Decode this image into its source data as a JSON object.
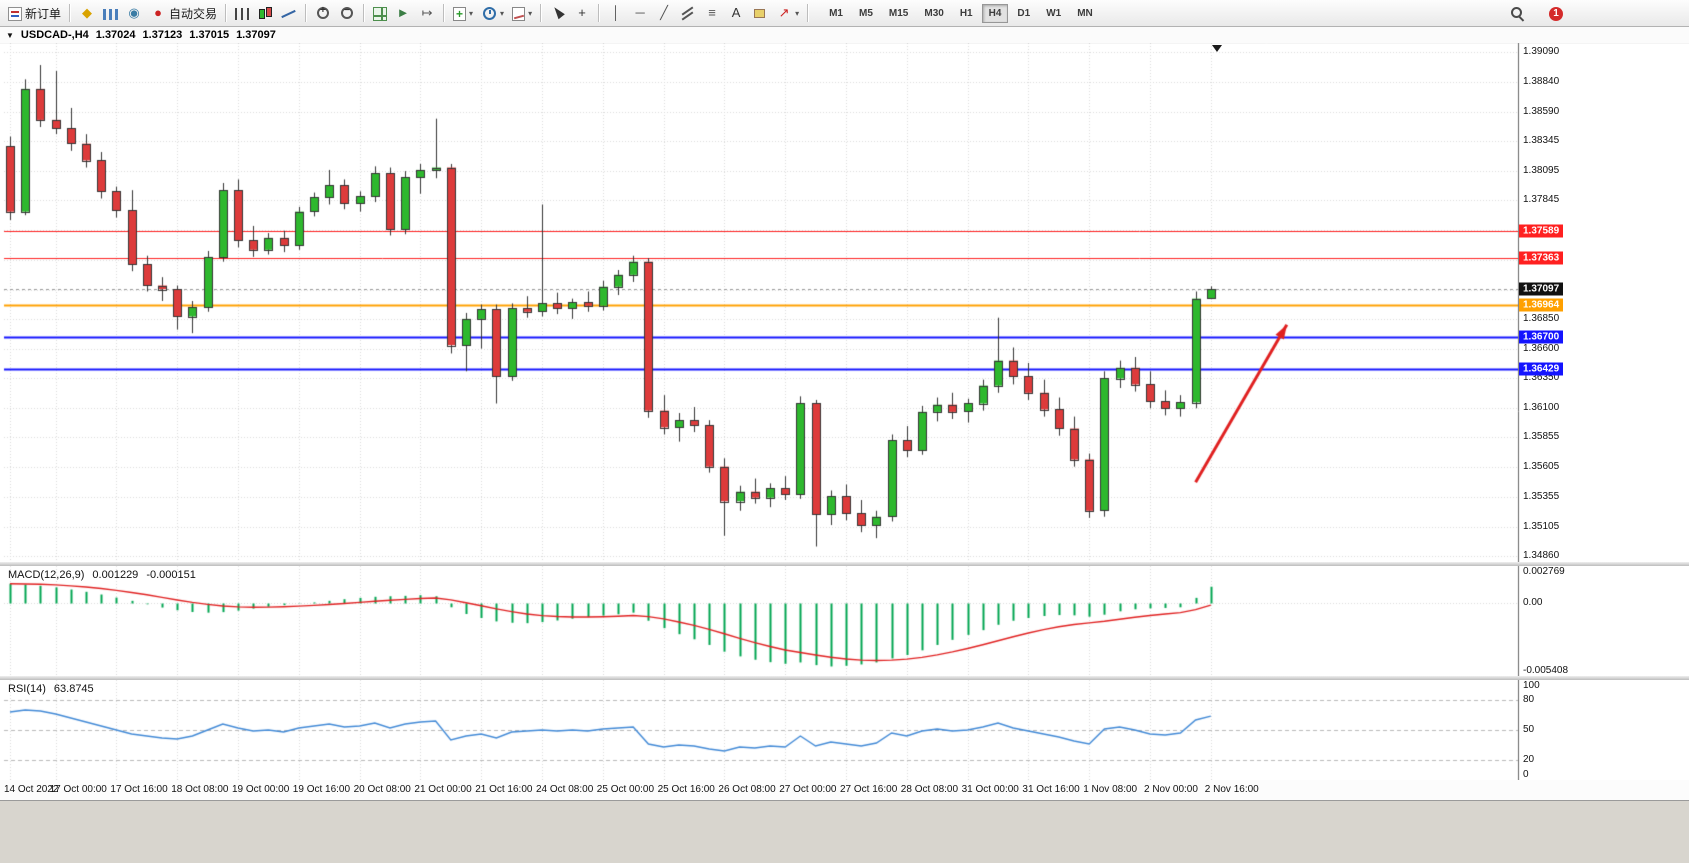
{
  "toolbar": {
    "items": [
      {
        "name": "new-order-button",
        "icon": "new-order-icon",
        "css": "i-neworder",
        "label": "新订单"
      },
      {
        "sep": true
      },
      {
        "name": "metaeditor-button",
        "icon": "metaeditor-icon",
        "glyph": "◆",
        "color": "#D9A300"
      },
      {
        "name": "market-watch-button",
        "icon": "market-watch-icon",
        "css": "i-bars-blue"
      },
      {
        "name": "navigator-button",
        "icon": "navigator-icon",
        "glyph": "◉",
        "color": "#3A7CA5"
      },
      {
        "name": "autotrading-button",
        "icon": "autotrading-icon",
        "glyph": "●",
        "color": "#CC2222",
        "label": "自动交易"
      },
      {
        "sep": true
      },
      {
        "name": "bar-chart-button",
        "icon": "bar-chart-icon",
        "css": "i-ohlc"
      },
      {
        "name": "candlestick-button",
        "icon": "candlestick-icon",
        "css": "i-candles"
      },
      {
        "name": "line-chart-button",
        "icon": "line-chart-icon",
        "css": "i-linechart"
      },
      {
        "sep": true
      },
      {
        "name": "zoom-in-button",
        "icon": "zoom-in-icon",
        "css": "i-zoomin"
      },
      {
        "name": "zoom-out-button",
        "icon": "zoom-out-icon",
        "css": "i-zoomout"
      },
      {
        "sep": true
      },
      {
        "name": "tile-windows-button",
        "icon": "tile-windows-icon",
        "css": "i-tile"
      },
      {
        "name": "auto-scroll-button",
        "icon": "auto-scroll-icon",
        "glyph": "►",
        "color": "#3A7D44"
      },
      {
        "name": "chart-shift-button",
        "icon": "chart-shift-icon",
        "glyph": "↦",
        "color": "#555555"
      },
      {
        "sep": true
      },
      {
        "name": "new-chart-button",
        "icon": "new-chart-icon",
        "css": "i-newchart",
        "dropdown": true
      },
      {
        "name": "periods-button",
        "icon": "periods-icon",
        "css": "i-clock",
        "dropdown": true
      },
      {
        "name": "templates-button",
        "icon": "templates-icon",
        "css": "i-template",
        "dropdown": true
      },
      {
        "sep": true
      },
      {
        "name": "cursor-button",
        "icon": "cursor-icon",
        "css": "i-cursor"
      },
      {
        "name": "crosshair-button",
        "icon": "crosshair-icon",
        "glyph": "+",
        "color": "#333333"
      },
      {
        "sep": true
      },
      {
        "name": "vertical-line-button",
        "icon": "vertical-line-icon",
        "glyph": "│",
        "color": "#555555"
      },
      {
        "name": "horizontal-line-button",
        "icon": "horizontal-line-icon",
        "glyph": "─",
        "color": "#555555"
      },
      {
        "name": "trendline-button",
        "icon": "trendline-icon",
        "glyph": "╱",
        "color": "#555555"
      },
      {
        "name": "channel-button",
        "icon": "equidistant-channel-icon",
        "css": "i-channel"
      },
      {
        "name": "fibonacci-button",
        "icon": "fibonacci-icon",
        "glyph": "≡",
        "color": "#555555"
      },
      {
        "name": "text-button",
        "icon": "text-icon",
        "glyph": "A",
        "color": "#333333"
      },
      {
        "name": "label-button",
        "icon": "label-icon",
        "css": "i-label"
      },
      {
        "name": "arrows-button",
        "icon": "arrow-tool-icon",
        "glyph": "↗",
        "color": "#CC2222",
        "dropdown": true
      },
      {
        "sep": true
      }
    ],
    "timeframes": [
      "M1",
      "M5",
      "M15",
      "M30",
      "H1",
      "H4",
      "D1",
      "W1",
      "MN"
    ],
    "active_timeframe": "H4",
    "right_items": [
      {
        "name": "search-button",
        "icon": "search-icon",
        "css": "i-magnifier"
      },
      {
        "name": "notifications-button",
        "icon": "notification-icon",
        "css": "i-notif",
        "badge": "1"
      }
    ],
    "dropdown_glyph": "▾"
  },
  "chart_header": {
    "menu_icon": "▼",
    "symbol": "USDCAD-,H4",
    "open": "1.37024",
    "high": "1.37123",
    "low": "1.37015",
    "close": "1.37097"
  },
  "panes": {
    "macd": {
      "label": "MACD(12,26,9)",
      "main": "0.001229",
      "signal": "-0.000151"
    },
    "rsi": {
      "label": "RSI(14)",
      "value": "63.8745"
    }
  },
  "chart_data": {
    "type": "candlestick",
    "symbol": "USDCAD",
    "period": "H4",
    "price_range": [
      1.3481,
      1.39165
    ],
    "price_axis_ticks": [
      "1.39090",
      "1.38840",
      "1.38590",
      "1.38345",
      "1.38095",
      "1.37845",
      "1.36850",
      "1.36600",
      "1.36350",
      "1.36100",
      "1.35855",
      "1.35605",
      "1.35355",
      "1.35105",
      "1.34860"
    ],
    "hidden_gridlines": [
      1.37595,
      1.37345,
      1.37095
    ],
    "macd_axis_ticks": [
      "0.002769",
      "0.00",
      "-0.005408"
    ],
    "rsi_axis_ticks": [
      "100",
      "80",
      "50",
      "20",
      "0"
    ],
    "time_axis": {
      "bars": [
        0,
        3,
        7,
        11,
        15,
        19,
        23,
        27,
        31,
        35,
        39,
        43,
        47,
        51,
        55,
        59,
        63,
        67,
        71,
        75,
        79
      ],
      "labels": [
        "14 Oct 2022",
        "17 Oct 00:00",
        "17 Oct 16:00",
        "18 Oct 08:00",
        "19 Oct 00:00",
        "19 Oct 16:00",
        "20 Oct 08:00",
        "21 Oct 00:00",
        "21 Oct 16:00",
        "24 Oct 08:00",
        "25 Oct 00:00",
        "25 Oct 16:00",
        "26 Oct 08:00",
        "27 Oct 00:00",
        "27 Oct 16:00",
        "28 Oct 08:00",
        "31 Oct 00:00",
        "31 Oct 16:00",
        "1 Nov 08:00",
        "2 Nov 00:00",
        "2 Nov 16:00"
      ]
    },
    "ohlc_current": {
      "open": 1.37024,
      "high": 1.37123,
      "low": 1.37015,
      "close": 1.37097
    },
    "candles": [
      [
        1.383,
        1.3838,
        1.3768,
        1.3775
      ],
      [
        1.3775,
        1.3886,
        1.3772,
        1.3878
      ],
      [
        1.3878,
        1.3898,
        1.3846,
        1.3852
      ],
      [
        1.3852,
        1.3893,
        1.384,
        1.3845
      ],
      [
        1.3845,
        1.3862,
        1.3826,
        1.3832
      ],
      [
        1.3832,
        1.384,
        1.3812,
        1.3818
      ],
      [
        1.3818,
        1.3825,
        1.3786,
        1.3792
      ],
      [
        1.3792,
        1.3796,
        1.377,
        1.3776
      ],
      [
        1.3776,
        1.3793,
        1.3725,
        1.3731
      ],
      [
        1.3731,
        1.3738,
        1.3708,
        1.3713
      ],
      [
        1.3713,
        1.372,
        1.37,
        1.371
      ],
      [
        1.371,
        1.3713,
        1.3676,
        1.3687
      ],
      [
        1.3687,
        1.37,
        1.3673,
        1.3695
      ],
      [
        1.3695,
        1.3742,
        1.3691,
        1.3737
      ],
      [
        1.3737,
        1.3799,
        1.3733,
        1.3793
      ],
      [
        1.3793,
        1.3802,
        1.3745,
        1.3751
      ],
      [
        1.3751,
        1.3763,
        1.3737,
        1.3743
      ],
      [
        1.3743,
        1.3757,
        1.3739,
        1.3753
      ],
      [
        1.3753,
        1.3759,
        1.3741,
        1.3747
      ],
      [
        1.3747,
        1.3779,
        1.3743,
        1.3775
      ],
      [
        1.3775,
        1.3791,
        1.3771,
        1.3787
      ],
      [
        1.3787,
        1.381,
        1.3781,
        1.3797
      ],
      [
        1.3797,
        1.3802,
        1.3777,
        1.3782
      ],
      [
        1.3782,
        1.3792,
        1.3775,
        1.3788
      ],
      [
        1.3788,
        1.3813,
        1.3783,
        1.3807
      ],
      [
        1.3807,
        1.3812,
        1.3755,
        1.376
      ],
      [
        1.376,
        1.3809,
        1.3756,
        1.3804
      ],
      [
        1.3804,
        1.3815,
        1.379,
        1.381
      ],
      [
        1.381,
        1.3853,
        1.3803,
        1.3812
      ],
      [
        1.3812,
        1.3815,
        1.3656,
        1.3663
      ],
      [
        1.3663,
        1.369,
        1.3641,
        1.3685
      ],
      [
        1.3685,
        1.3697,
        1.366,
        1.3693
      ],
      [
        1.3693,
        1.3697,
        1.3614,
        1.3637
      ],
      [
        1.3637,
        1.3698,
        1.3633,
        1.3694
      ],
      [
        1.3694,
        1.3704,
        1.3686,
        1.3691
      ],
      [
        1.3691,
        1.3781,
        1.3687,
        1.3698
      ],
      [
        1.3698,
        1.3707,
        1.3689,
        1.3694
      ],
      [
        1.3694,
        1.3702,
        1.3685,
        1.3699
      ],
      [
        1.3699,
        1.3708,
        1.3691,
        1.3696
      ],
      [
        1.3696,
        1.3717,
        1.3692,
        1.3712
      ],
      [
        1.3712,
        1.3726,
        1.3705,
        1.3722
      ],
      [
        1.3722,
        1.3738,
        1.3716,
        1.3733
      ],
      [
        1.3733,
        1.3736,
        1.3602,
        1.3608
      ],
      [
        1.3608,
        1.3621,
        1.3588,
        1.3594
      ],
      [
        1.3594,
        1.3606,
        1.3582,
        1.36
      ],
      [
        1.36,
        1.3611,
        1.359,
        1.3596
      ],
      [
        1.3596,
        1.36,
        1.3556,
        1.3561
      ],
      [
        1.3561,
        1.3568,
        1.3503,
        1.3532
      ],
      [
        1.3532,
        1.3545,
        1.3524,
        1.354
      ],
      [
        1.354,
        1.3551,
        1.353,
        1.3535
      ],
      [
        1.3535,
        1.3547,
        1.3527,
        1.3543
      ],
      [
        1.3543,
        1.3553,
        1.3533,
        1.3538
      ],
      [
        1.3538,
        1.362,
        1.3534,
        1.3614
      ],
      [
        1.3614,
        1.3617,
        1.3494,
        1.3521
      ],
      [
        1.3521,
        1.3541,
        1.3512,
        1.3536
      ],
      [
        1.3536,
        1.3546,
        1.3516,
        1.3522
      ],
      [
        1.3522,
        1.3533,
        1.3506,
        1.3512
      ],
      [
        1.3512,
        1.3524,
        1.3501,
        1.3519
      ],
      [
        1.3519,
        1.3588,
        1.3515,
        1.3583
      ],
      [
        1.3583,
        1.3595,
        1.3569,
        1.3575
      ],
      [
        1.3575,
        1.3612,
        1.3571,
        1.3607
      ],
      [
        1.3607,
        1.3619,
        1.3599,
        1.3613
      ],
      [
        1.3613,
        1.3623,
        1.3601,
        1.3607
      ],
      [
        1.3607,
        1.3618,
        1.3598,
        1.3614
      ],
      [
        1.3614,
        1.3634,
        1.3608,
        1.3629
      ],
      [
        1.3629,
        1.3686,
        1.3623,
        1.365
      ],
      [
        1.365,
        1.3661,
        1.363,
        1.3637
      ],
      [
        1.3637,
        1.3648,
        1.3617,
        1.3623
      ],
      [
        1.3623,
        1.3634,
        1.3603,
        1.3609
      ],
      [
        1.3609,
        1.3619,
        1.3587,
        1.3593
      ],
      [
        1.3593,
        1.3603,
        1.3561,
        1.3567
      ],
      [
        1.3567,
        1.3572,
        1.3518,
        1.3524
      ],
      [
        1.3524,
        1.3641,
        1.3519,
        1.3635
      ],
      [
        1.3635,
        1.365,
        1.3627,
        1.3644
      ],
      [
        1.3644,
        1.3653,
        1.3624,
        1.363
      ],
      [
        1.363,
        1.3641,
        1.361,
        1.3616
      ],
      [
        1.3616,
        1.3625,
        1.3604,
        1.361
      ],
      [
        1.361,
        1.3621,
        1.3603,
        1.3615
      ],
      [
        1.3615,
        1.3708,
        1.361,
        1.3702
      ],
      [
        1.37024,
        1.37123,
        1.37015,
        1.37097
      ]
    ],
    "indicators": {
      "macd": {
        "params": [
          12,
          26,
          9
        ],
        "current_main": 0.001229,
        "current_signal": -0.000151,
        "range": [
          -0.005408,
          0.002769
        ],
        "histogram": [
          0.00145,
          0.00138,
          0.0013,
          0.00118,
          0.00102,
          0.00085,
          0.00065,
          0.00042,
          0.00018,
          -8e-05,
          -0.00032,
          -0.00052,
          -0.00065,
          -0.0007,
          -0.00066,
          -0.00055,
          -0.0004,
          -0.00026,
          -0.00014,
          -4e-05,
          6e-05,
          0.00018,
          0.0003,
          0.0004,
          0.00048,
          0.00052,
          0.00055,
          0.0006,
          0.00052,
          -0.0003,
          -0.0008,
          -0.0011,
          -0.00135,
          -0.00145,
          -0.00148,
          -0.0014,
          -0.00128,
          -0.00115,
          -0.00103,
          -0.00092,
          -0.00082,
          -0.0007,
          -0.0013,
          -0.00185,
          -0.0023,
          -0.00268,
          -0.0031,
          -0.0036,
          -0.00395,
          -0.0042,
          -0.00438,
          -0.0045,
          -0.0044,
          -0.0046,
          -0.0047,
          -0.00465,
          -0.00455,
          -0.0044,
          -0.0041,
          -0.00385,
          -0.0035,
          -0.0031,
          -0.00272,
          -0.00235,
          -0.002,
          -0.0016,
          -0.0013,
          -0.0011,
          -0.00095,
          -0.00088,
          -0.0009,
          -0.001,
          -0.00085,
          -0.0006,
          -0.00045,
          -0.00038,
          -0.00035,
          -0.0003,
          0.0004,
          0.001229
        ]
      },
      "rsi": {
        "period": 14,
        "current": 63.8745,
        "range": [
          0,
          100
        ],
        "levels": [
          80,
          50,
          20
        ],
        "values": [
          68,
          70,
          69,
          66,
          62,
          58,
          54,
          50,
          46,
          44,
          42,
          41,
          44,
          50,
          56,
          52,
          49,
          50,
          48,
          52,
          54,
          56,
          53,
          54,
          57,
          52,
          56,
          58,
          59,
          40,
          44,
          46,
          42,
          48,
          49,
          50,
          49,
          50,
          49,
          51,
          52,
          53,
          36,
          33,
          35,
          34,
          31,
          29,
          33,
          32,
          34,
          33,
          44,
          34,
          38,
          36,
          34,
          37,
          47,
          44,
          49,
          51,
          49,
          50,
          53,
          57,
          52,
          49,
          46,
          43,
          39,
          36,
          51,
          53,
          50,
          46,
          45,
          47,
          60,
          63.8745
        ]
      }
    },
    "horizontal_lines": [
      {
        "label": "1.37589",
        "price": 1.37589,
        "color": "#FF2020",
        "width": 1
      },
      {
        "label": "1.37363",
        "price": 1.37363,
        "color": "#FF2020",
        "width": 1
      },
      {
        "label": "1.36964",
        "price": 1.36964,
        "color": "#FFA000",
        "width": 2
      },
      {
        "label": "1.36700",
        "price": 1.367,
        "color": "#1414FF",
        "width": 2
      },
      {
        "label": "1.36429",
        "price": 1.36429,
        "color": "#1414FF",
        "width": 2
      }
    ],
    "arrow_annotation": {
      "bar_from": 78,
      "price_from": 1.3548,
      "bar_to": 84,
      "price_to": 1.368,
      "color": "#E02020",
      "width": 3
    },
    "colors": {
      "bull": "#2EB82E",
      "bear": "#DD3B3B",
      "outline": "#333333",
      "grid": "#DADADA",
      "macd_histogram": "#00A550",
      "macd_signal": "#E02020",
      "rsi_line": "#4189D6",
      "current_price_badge": "#111111",
      "level_dash": "#B8B8B8"
    }
  }
}
